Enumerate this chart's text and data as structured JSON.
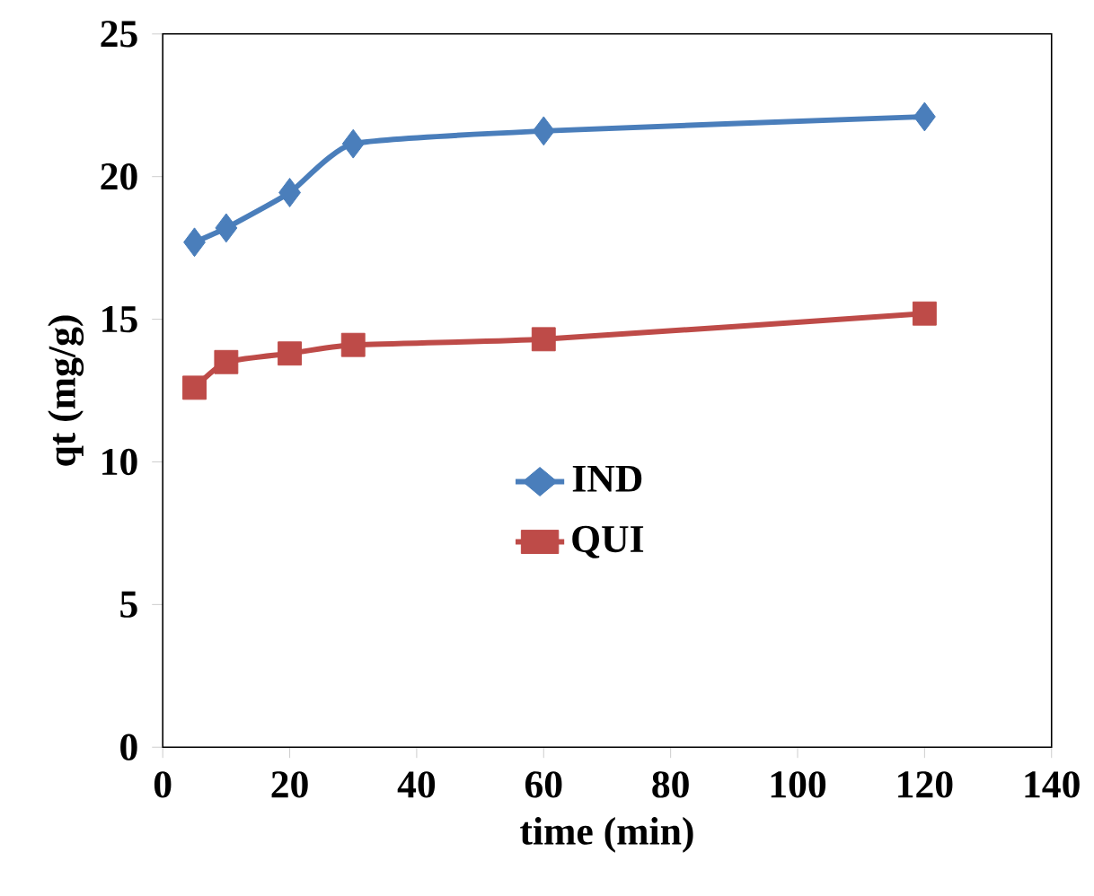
{
  "chart_data": {
    "type": "line",
    "xlabel": "time (min)",
    "ylabel": "qt (mg/g)",
    "x": [
      5,
      10,
      20,
      30,
      60,
      120
    ],
    "series": [
      {
        "name": "IND",
        "color": "#4a7ebb",
        "marker": "diamond",
        "values": [
          17.7,
          18.2,
          19.44,
          21.15,
          21.6,
          22.1
        ]
      },
      {
        "name": "QUI",
        "color": "#be4b48",
        "marker": "square",
        "values": [
          12.6,
          13.5,
          13.8,
          14.1,
          14.3,
          15.2
        ]
      }
    ],
    "xlim": [
      0,
      140
    ],
    "xticks": [
      0,
      20,
      40,
      60,
      80,
      100,
      120,
      140
    ],
    "ylim": [
      0,
      25
    ],
    "yticks": [
      0,
      5,
      10,
      15,
      20,
      25
    ],
    "grid": false,
    "legend": "center",
    "line_style": "solid"
  }
}
